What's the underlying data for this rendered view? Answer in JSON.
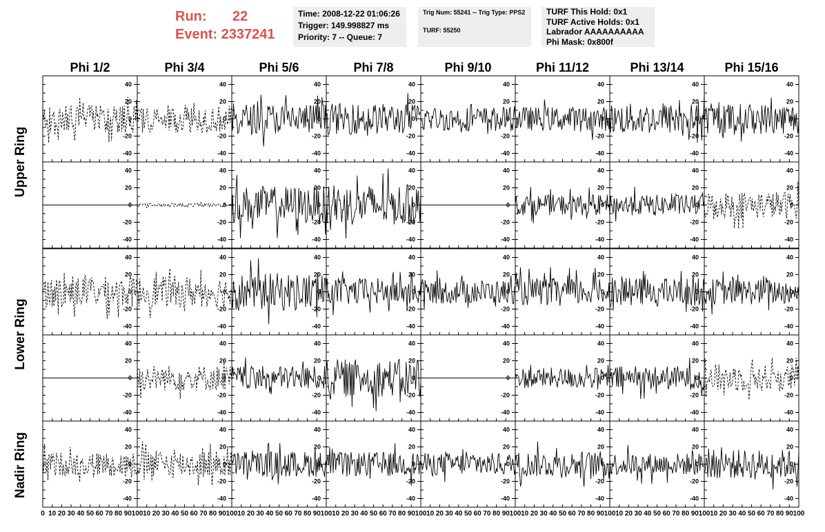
{
  "header": {
    "run_label": "Run:",
    "run_value": "22",
    "event_label": "Event:",
    "event_value": "2337241"
  },
  "info_boxes": [
    {
      "lines": [
        "Time: 2008-12-22 01:06:26",
        "Trigger: 149.998827 ms",
        "Priority: 7 -- Queue: 7"
      ]
    },
    {
      "lines": [
        "Trig Num: 55241 -- Trig Type: PPS2",
        "",
        "TURF: 55250"
      ]
    },
    {
      "lines": [
        "TURF This Hold: 0x1",
        "TURF Active Holds: 0x1",
        "Labrador AAAAAAAAAA",
        "Phi Mask: 0x800f"
      ]
    }
  ],
  "chart_data": {
    "type": "line",
    "columns": [
      "Phi 1/2",
      "Phi 3/4",
      "Phi 5/6",
      "Phi 7/8",
      "Phi 9/10",
      "Phi 11/12",
      "Phi 13/14",
      "Phi 15/16"
    ],
    "rings": [
      "Upper Ring",
      "Lower Ring",
      "Nadir Ring"
    ],
    "xlim": [
      0,
      100
    ],
    "ylim": [
      -50,
      50
    ],
    "x_ticks": [
      0,
      10,
      20,
      30,
      40,
      50,
      60,
      70,
      80,
      90,
      100
    ],
    "y_ticks": [
      -40,
      -20,
      0,
      20,
      40
    ],
    "series_style_note": "dashed = masked phi sector, solid = active",
    "panels": [
      [
        {
          "style": "dashed",
          "amp": 16
        },
        {
          "style": "dashed",
          "amp": 16
        },
        {
          "style": "solid",
          "amp": 18
        },
        {
          "style": "solid",
          "amp": 18
        },
        {
          "style": "solid",
          "amp": 14
        },
        {
          "style": "solid",
          "amp": 14
        },
        {
          "style": "solid",
          "amp": 18
        },
        {
          "style": "solid",
          "amp": 18
        }
      ],
      [
        {
          "style": "flat",
          "amp": 0
        },
        {
          "style": "dashed",
          "amp": 2
        },
        {
          "style": "solid",
          "amp": 22
        },
        {
          "style": "solid",
          "amp": 24
        },
        {
          "style": "flat",
          "amp": 0
        },
        {
          "style": "solid",
          "amp": 12
        },
        {
          "style": "solid",
          "amp": 12
        },
        {
          "style": "dashed",
          "amp": 16
        }
      ],
      [
        {
          "style": "dashed",
          "amp": 18
        },
        {
          "style": "dashed",
          "amp": 18
        },
        {
          "style": "solid",
          "amp": 22
        },
        {
          "style": "solid",
          "amp": 16
        },
        {
          "style": "solid",
          "amp": 14
        },
        {
          "style": "solid",
          "amp": 16
        },
        {
          "style": "solid",
          "amp": 16
        },
        {
          "style": "solid",
          "amp": 15
        }
      ],
      [
        {
          "style": "flat",
          "amp": 0
        },
        {
          "style": "dashed",
          "amp": 15
        },
        {
          "style": "solid",
          "amp": 14
        },
        {
          "style": "solid",
          "amp": 22
        },
        {
          "style": "flat",
          "amp": 0
        },
        {
          "style": "solid",
          "amp": 12
        },
        {
          "style": "solid",
          "amp": 14
        },
        {
          "style": "dashed",
          "amp": 16
        }
      ],
      [
        {
          "style": "dashed",
          "amp": 14
        },
        {
          "style": "dashed",
          "amp": 16
        },
        {
          "style": "solid",
          "amp": 15
        },
        {
          "style": "solid",
          "amp": 14
        },
        {
          "style": "solid",
          "amp": 13
        },
        {
          "style": "solid",
          "amp": 15
        },
        {
          "style": "solid",
          "amp": 13
        },
        {
          "style": "solid",
          "amp": 17
        }
      ]
    ]
  }
}
